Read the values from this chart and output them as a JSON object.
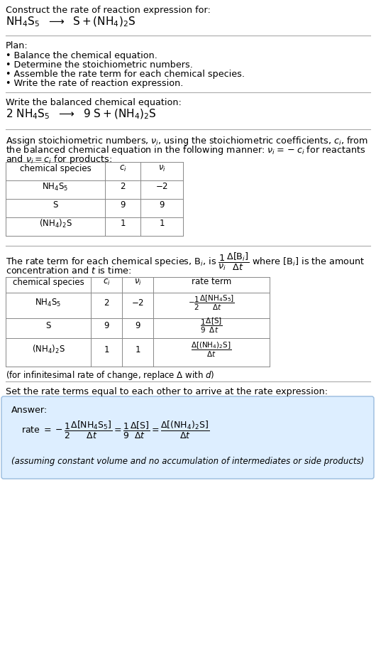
{
  "bg_color": "#ffffff",
  "text_color": "#000000",
  "title_line1": "Construct the rate of reaction expression for:",
  "plan_header": "Plan:",
  "plan_items": [
    "• Balance the chemical equation.",
    "• Determine the stoichiometric numbers.",
    "• Assemble the rate term for each chemical species.",
    "• Write the rate of reaction expression."
  ],
  "balanced_header": "Write the balanced chemical equation:",
  "table1_headers": [
    "chemical species",
    "$c_i$",
    "$\\nu_i$"
  ],
  "table1_rows": [
    [
      "$\\mathrm{NH_4S_5}$",
      "2",
      "$-2$"
    ],
    [
      "S",
      "9",
      "9"
    ],
    [
      "$\\mathrm{(NH_4)_2S}$",
      "1",
      "1"
    ]
  ],
  "table2_headers": [
    "chemical species",
    "$c_i$",
    "$\\nu_i$",
    "rate term"
  ],
  "table2_rows": [
    [
      "$\\mathrm{NH_4S_5}$",
      "2",
      "$-2$",
      "$-\\dfrac{1}{2}\\dfrac{\\Delta[\\mathrm{NH_4S_5}]}{\\Delta t}$"
    ],
    [
      "S",
      "9",
      "9",
      "$\\dfrac{1}{9}\\dfrac{\\Delta[\\mathrm{S}]}{\\Delta t}$"
    ],
    [
      "$\\mathrm{(NH_4)_2S}$",
      "1",
      "1",
      "$\\dfrac{\\Delta[\\mathrm{(NH_4)_2S}]}{\\Delta t}$"
    ]
  ],
  "answer_bg": "#ddeeff",
  "answer_border": "#99bbdd",
  "answer_label": "Answer:"
}
